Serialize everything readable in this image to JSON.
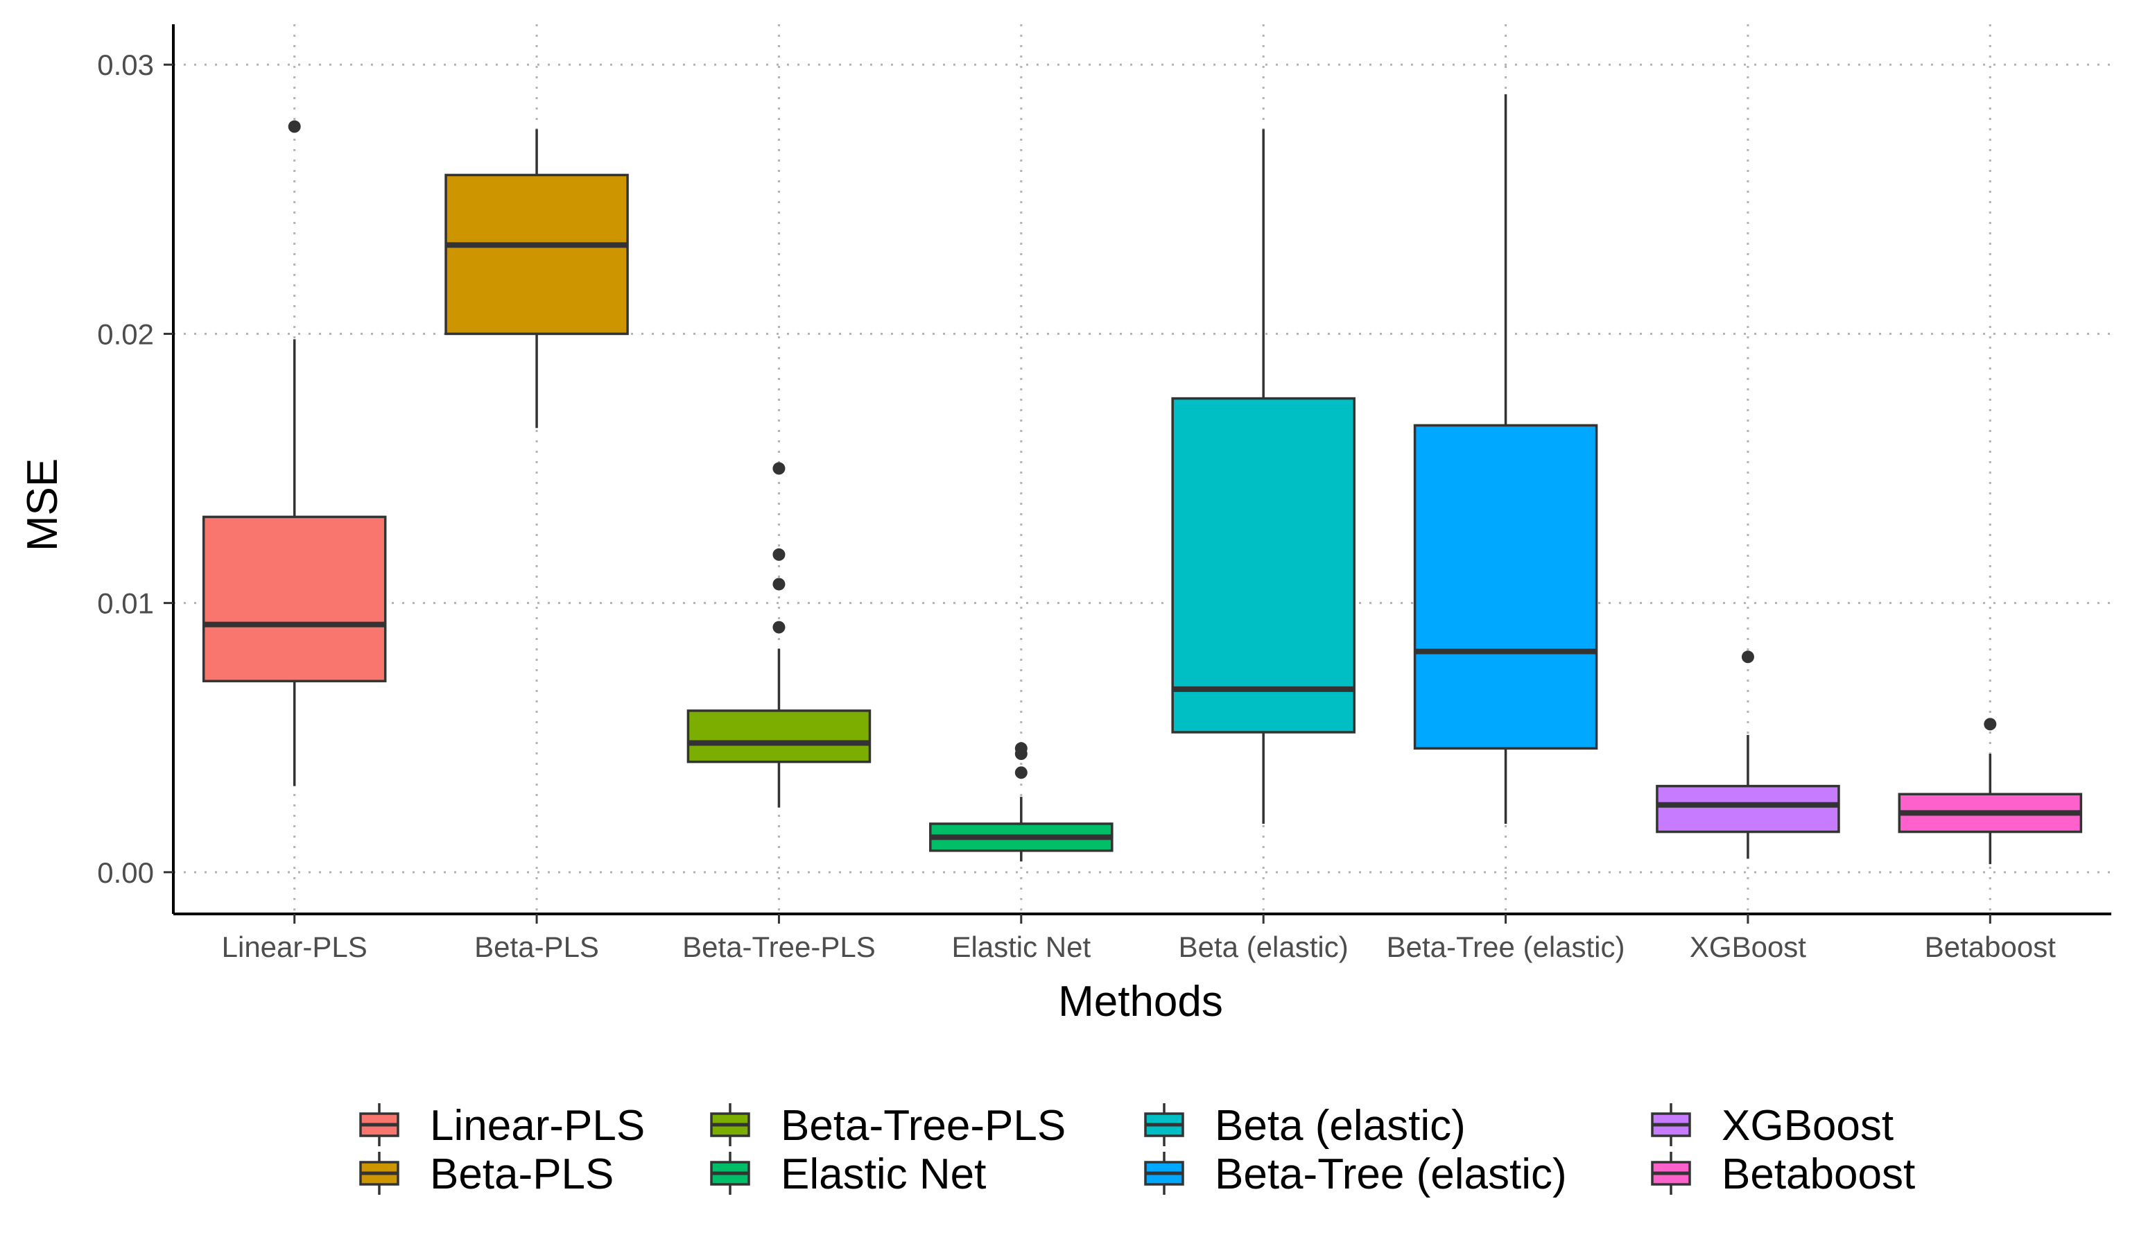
{
  "chart_data": {
    "type": "boxplot",
    "xlabel": "Methods",
    "ylabel": "MSE",
    "ylim": [
      -0.00155,
      0.0315
    ],
    "yticks": [
      0.0,
      0.01,
      0.02,
      0.03
    ],
    "ytick_labels": [
      "0.00",
      "0.01",
      "0.02",
      "0.03"
    ],
    "grid": "dotted major gridlines",
    "legend_position": "bottom",
    "legend_rows": 2,
    "categories": [
      "Linear-PLS",
      "Beta-PLS",
      "Beta-Tree-PLS",
      "Elastic Net",
      "Beta (elastic)",
      "Beta-Tree (elastic)",
      "XGBoost",
      "Betaboost"
    ],
    "series": [
      {
        "name": "Linear-PLS",
        "color": "#F8766D",
        "whisker_low": 0.0032,
        "q1": 0.0071,
        "median": 0.0092,
        "q3": 0.0132,
        "whisker_high": 0.0198,
        "outliers": [
          0.0277
        ]
      },
      {
        "name": "Beta-PLS",
        "color": "#CD9600",
        "whisker_low": 0.0165,
        "q1": 0.02,
        "median": 0.0233,
        "q3": 0.0259,
        "whisker_high": 0.0276,
        "outliers": []
      },
      {
        "name": "Beta-Tree-PLS",
        "color": "#7CAE00",
        "whisker_low": 0.0024,
        "q1": 0.0041,
        "median": 0.0048,
        "q3": 0.006,
        "whisker_high": 0.0083,
        "outliers": [
          0.0091,
          0.0107,
          0.0118,
          0.015
        ]
      },
      {
        "name": "Elastic Net",
        "color": "#00BE67",
        "whisker_low": 0.0004,
        "q1": 0.0008,
        "median": 0.0013,
        "q3": 0.0018,
        "whisker_high": 0.0028,
        "outliers": [
          0.0037,
          0.0044,
          0.0046
        ]
      },
      {
        "name": "Beta (elastic)",
        "color": "#00BFC4",
        "whisker_low": 0.0018,
        "q1": 0.0052,
        "median": 0.0068,
        "q3": 0.0176,
        "whisker_high": 0.0276,
        "outliers": []
      },
      {
        "name": "Beta-Tree (elastic)",
        "color": "#00A9FF",
        "whisker_low": 0.0018,
        "q1": 0.0046,
        "median": 0.0082,
        "q3": 0.0166,
        "whisker_high": 0.0289,
        "outliers": []
      },
      {
        "name": "XGBoost",
        "color": "#C77CFF",
        "whisker_low": 0.0005,
        "q1": 0.0015,
        "median": 0.0025,
        "q3": 0.0032,
        "whisker_high": 0.0051,
        "outliers": [
          0.008
        ]
      },
      {
        "name": "Betaboost",
        "color": "#FF61CC",
        "whisker_low": 0.0003,
        "q1": 0.0015,
        "median": 0.0022,
        "q3": 0.0029,
        "whisker_high": 0.0044,
        "outliers": [
          0.0055
        ]
      }
    ]
  }
}
